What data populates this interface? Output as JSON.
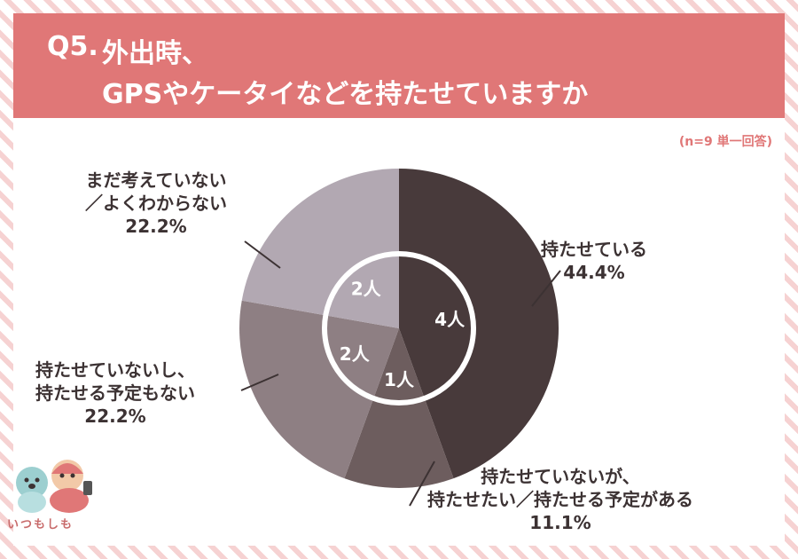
{
  "header": {
    "q_number": "Q5.",
    "title_line1": "外出時、",
    "title_line2": "GPSやケータイなどを持たせていますか"
  },
  "sample_note": "(n=9 単一回答)",
  "colors": {
    "header_bg": "#e07777",
    "slice_0": "#483a3b",
    "slice_1": "#6d5d5e",
    "slice_2": "#8e7f83",
    "slice_3": "#b2a8b2"
  },
  "logo": {
    "text": "いつもしも"
  },
  "chart_data": {
    "type": "pie",
    "title": "外出時、GPSやケータイなどを持たせていますか",
    "n": 9,
    "slices": [
      {
        "label_lines": [
          "持たせている"
        ],
        "percent": "44.4%",
        "count_label": "4人",
        "value": 4
      },
      {
        "label_lines": [
          "持たせていないが、",
          "持たせたい／持たせる予定がある"
        ],
        "percent": "11.1%",
        "count_label": "1人",
        "value": 1
      },
      {
        "label_lines": [
          "持たせていないし、",
          "持たせる予定もない"
        ],
        "percent": "22.2%",
        "count_label": "2人",
        "value": 2
      },
      {
        "label_lines": [
          "まだ考えていない",
          "／よくわからない"
        ],
        "percent": "22.2%",
        "count_label": "2人",
        "value": 2
      }
    ]
  }
}
